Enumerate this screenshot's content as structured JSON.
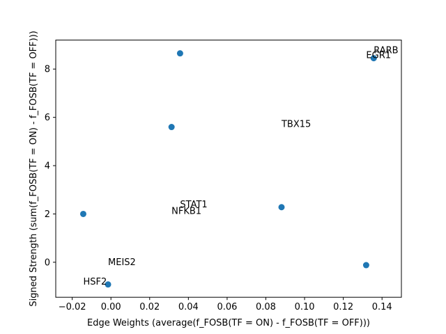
{
  "chart_data": {
    "type": "scatter",
    "xlabel": "Edge Weights (average(f_FOSB(TF = ON) - f_FOSB(TF = OFF)))",
    "ylabel": "Signed Strength (sum(f_FOSB(TF = ON) - f_FOSB(TF = OFF)))",
    "xlim": [
      -0.0285,
      0.15
    ],
    "ylim": [
      -1.45,
      9.2
    ],
    "xticks": [
      -0.02,
      0.0,
      0.02,
      0.04,
      0.06,
      0.08,
      0.1,
      0.12,
      0.14
    ],
    "xtick_labels": [
      "−0.02",
      "0.00",
      "0.02",
      "0.04",
      "0.06",
      "0.08",
      "0.10",
      "0.12",
      "0.14"
    ],
    "yticks": [
      0,
      2,
      4,
      6,
      8
    ],
    "ytick_labels": [
      "0",
      "2",
      "4",
      "6",
      "8"
    ],
    "grid": false,
    "marker_color": "#1f77b4",
    "points": [
      {
        "x": 0.0357,
        "y": 8.65
      },
      {
        "x": 0.1357,
        "y": 8.45
      },
      {
        "x": 0.0313,
        "y": 5.6
      },
      {
        "x": -0.0143,
        "y": 2.0
      },
      {
        "x": 0.0881,
        "y": 2.28
      },
      {
        "x": 0.1318,
        "y": -0.12
      },
      {
        "x": -0.0015,
        "y": -0.92
      }
    ],
    "annotations": [
      {
        "text": "RARB",
        "x": 0.1357,
        "y": 8.65
      },
      {
        "text": "EGR1",
        "x": 0.1318,
        "y": 8.45
      },
      {
        "text": "TBX15",
        "x": 0.0881,
        "y": 5.6
      },
      {
        "text": "STAT1",
        "x": 0.0357,
        "y": 2.28
      },
      {
        "text": "NFKB1",
        "x": 0.0313,
        "y": 2.0
      },
      {
        "text": "MEIS2",
        "x": -0.0015,
        "y": -0.12
      },
      {
        "text": "HSF2",
        "x": -0.0143,
        "y": -0.92
      }
    ]
  }
}
